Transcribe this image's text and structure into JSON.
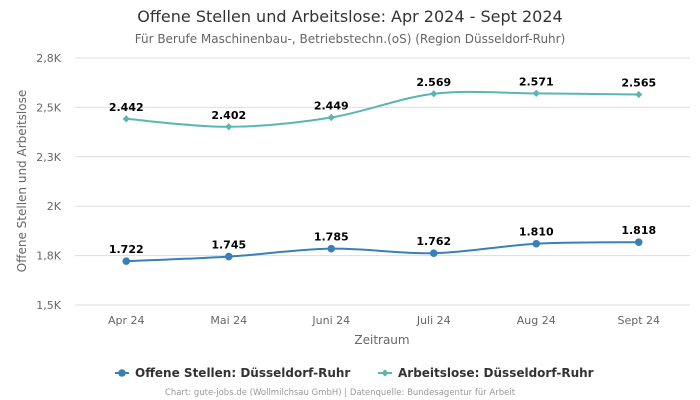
{
  "chart_data": {
    "type": "line",
    "title": "Offene Stellen und Arbeitslose: Apr 2024 - Sept 2024",
    "subtitle": "Für Berufe Maschinenbau-, Betriebstechn.(oS) (Region Düsseldorf-Ruhr)",
    "xlabel": "Zeitraum",
    "ylabel": "Offene Stellen und Arbeitslose",
    "categories": [
      "Apr 24",
      "Mai 24",
      "Juni 24",
      "Juli 24",
      "Aug 24",
      "Sept 24"
    ],
    "yticks": [
      {
        "value": 1500,
        "label": "1,5K"
      },
      {
        "value": 1750,
        "label": "1,8K"
      },
      {
        "value": 2000,
        "label": "2K"
      },
      {
        "value": 2250,
        "label": "2,3K"
      },
      {
        "value": 2500,
        "label": "2,5K"
      },
      {
        "value": 2750,
        "label": "2,8K"
      }
    ],
    "ylim": [
      1500,
      2750
    ],
    "grid": true,
    "legend_position": "bottom",
    "series": [
      {
        "name": "Offene Stellen: Düsseldorf-Ruhr",
        "color": "#3a7fb8",
        "marker": "circle",
        "values": [
          1722,
          1745,
          1785,
          1762,
          1810,
          1818
        ],
        "labels": [
          "1.722",
          "1.745",
          "1.785",
          "1.762",
          "1.810",
          "1.818"
        ]
      },
      {
        "name": "Arbeitslose: Düsseldorf-Ruhr",
        "color": "#5bb5b0",
        "marker": "diamond",
        "values": [
          2442,
          2402,
          2449,
          2569,
          2571,
          2565
        ],
        "labels": [
          "2.442",
          "2.402",
          "2.449",
          "2.569",
          "2.571",
          "2.565"
        ]
      }
    ],
    "credits": "Chart: gute-jobs.de (Wollmilchsau GmbH) | Datenquelle: Bundesagentur für Arbeit"
  }
}
